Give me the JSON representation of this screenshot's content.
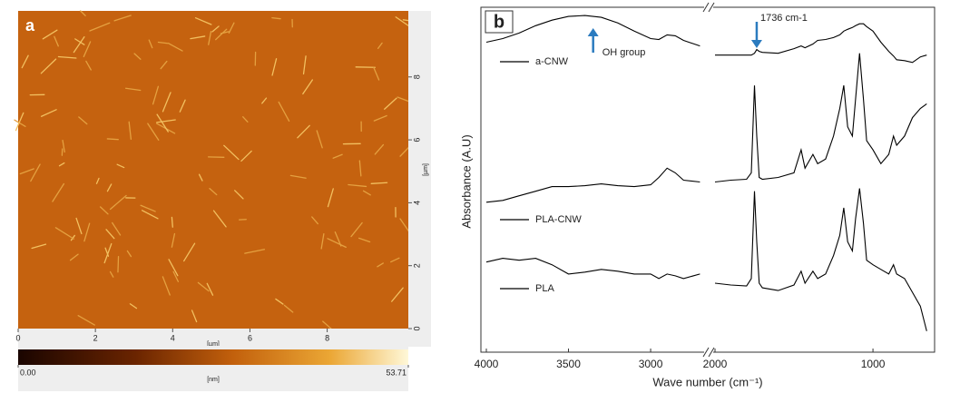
{
  "chart_data": [
    {
      "type": "image",
      "panel_label": "a",
      "xlim": [
        0,
        10.1
      ],
      "xticks": [
        0,
        2,
        4,
        6,
        8
      ],
      "xlabel": "[µm]",
      "ylim": [
        0,
        10.1
      ],
      "yticks": [
        0,
        2,
        4,
        6,
        8
      ],
      "ylabel": "[µm]",
      "colorbar_lim": [
        0,
        53.71
      ],
      "colorbar_ticks": [
        {
          "value": 0,
          "label": "0.00"
        },
        53.71
      ],
      "colorbar_label": "[nm]"
    },
    {
      "type": "line",
      "panel_label": "b",
      "xlabel": "Wave number (cm⁻¹)",
      "ylabel": "Absorbance (A.U)",
      "xlim": [
        4000,
        650
      ],
      "axis_break": [
        2680,
        2000
      ],
      "xticks": [
        4000,
        3500,
        3000,
        2000,
        1000
      ],
      "ylim": [
        0,
        375
      ],
      "x": [
        4000,
        3900,
        3800,
        3700,
        3600,
        3500,
        3400,
        3300,
        3200,
        3100,
        3000,
        2950,
        2900,
        2850,
        2800,
        2700,
        null,
        2000,
        1900,
        1800,
        1770,
        1750,
        1736,
        1720,
        1700,
        1600,
        1500,
        1455,
        1430,
        1380,
        1350,
        1300,
        1250,
        1210,
        1185,
        1160,
        1130,
        1110,
        1085,
        1060,
        1040,
        1000,
        950,
        900,
        870,
        850,
        800,
        750,
        700,
        660
      ],
      "series": [
        {
          "name": "a-CNW",
          "color": "#000000",
          "values": [
            337,
            341,
            347,
            355,
            361,
            365,
            366,
            364,
            358,
            349,
            341,
            340,
            345,
            344,
            339,
            333,
            null,
            323,
            323,
            323,
            323,
            325,
            329,
            327,
            326,
            325,
            330,
            333,
            331,
            335,
            339,
            340,
            342,
            345,
            349,
            351,
            353,
            355,
            357,
            357,
            354,
            349,
            337,
            327,
            322,
            318,
            317,
            315,
            321,
            323
          ]
        },
        {
          "name": "PLA-CNW",
          "color": "#000000",
          "values": [
            163,
            165,
            170,
            175,
            180,
            180,
            181,
            183,
            181,
            180,
            182,
            190,
            200,
            195,
            187,
            185,
            null,
            185,
            187,
            188,
            195,
            290,
            235,
            190,
            188,
            190,
            195,
            220,
            200,
            215,
            205,
            210,
            235,
            265,
            290,
            245,
            235,
            275,
            325,
            275,
            230,
            220,
            205,
            215,
            235,
            225,
            235,
            255,
            265,
            270
          ]
        },
        {
          "name": "PLA",
          "color": "#000000",
          "values": [
            98,
            102,
            100,
            102,
            95,
            85,
            87,
            90,
            88,
            85,
            85,
            80,
            85,
            83,
            80,
            85,
            null,
            75,
            73,
            72,
            80,
            175,
            120,
            75,
            70,
            67,
            73,
            88,
            75,
            88,
            80,
            85,
            105,
            127,
            157,
            120,
            110,
            145,
            178,
            140,
            100,
            95,
            90,
            85,
            95,
            85,
            80,
            65,
            50,
            23
          ]
        }
      ],
      "annotations": [
        {
          "text": "OH group",
          "x": 3350
        },
        {
          "text": "1736 cm-1",
          "x": 1736
        }
      ]
    }
  ]
}
